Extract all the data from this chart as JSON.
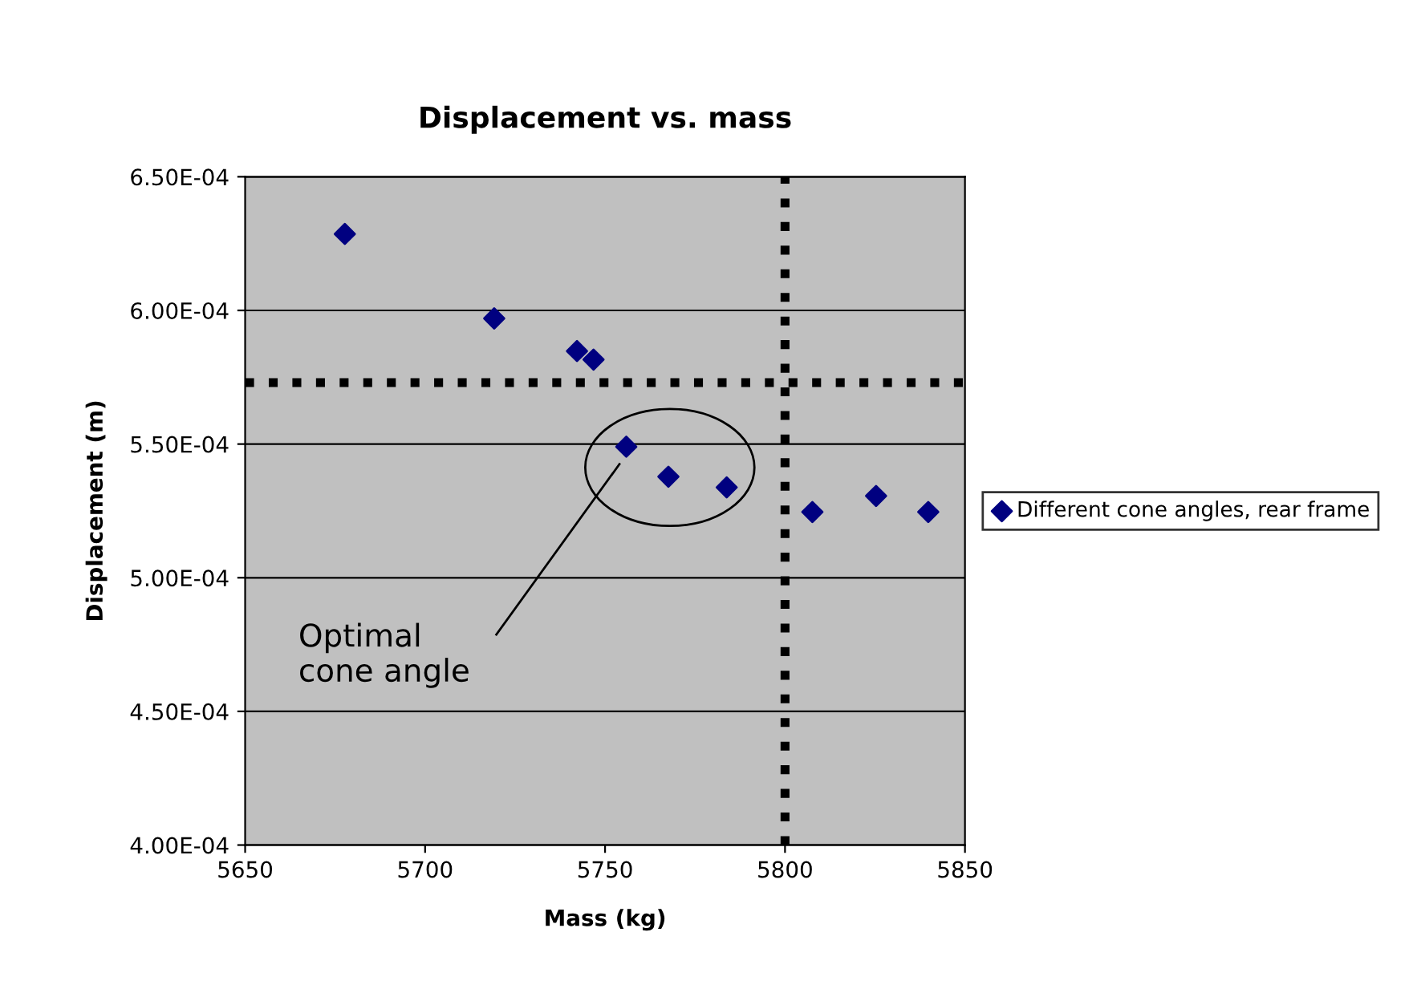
{
  "chart_data": {
    "type": "scatter",
    "title": "Displacement vs. mass",
    "xlabel": "Mass (kg)",
    "ylabel": "Displacement (m)",
    "series": [
      {
        "name": "Different cone angles, rear frame",
        "color": "#000080",
        "x": [
          5677.7,
          5719.2,
          5742.2,
          5746.8,
          5755.9,
          5767.6,
          5783.8,
          5807.6,
          5825.3,
          5839.8
        ],
        "values": [
          0.0006286,
          0.000597,
          0.0005848,
          0.0005816,
          0.000549,
          0.0005378,
          0.0005338,
          0.0005246,
          0.0005306,
          0.0005246
        ]
      }
    ],
    "xlim": [
      5650,
      5850
    ],
    "xticks": [
      5650,
      5700,
      5750,
      5800,
      5850
    ],
    "ylim": [
      0.0004,
      0.00065
    ],
    "yticks": [
      {
        "value": 0.0004,
        "label": "4.00E-04"
      },
      {
        "value": 0.00045,
        "label": "4.50E-04"
      },
      {
        "value": 0.0005,
        "label": "5.00E-04"
      },
      {
        "value": 0.00055,
        "label": "5.50E-04"
      },
      {
        "value": 0.0006,
        "label": "6.00E-04"
      },
      {
        "value": 0.00065,
        "label": "6.50E-04"
      }
    ],
    "ref_lines": [
      {
        "axis": "y",
        "value": 0.000573,
        "color": "#000000",
        "line_style": "dotted"
      },
      {
        "axis": "x",
        "value": 5800,
        "color": "#000000",
        "line_style": "dotted"
      }
    ],
    "annotations": [
      "Optimal\ncone angle"
    ],
    "grid": "y",
    "legend": "right",
    "marker": "diamond"
  }
}
